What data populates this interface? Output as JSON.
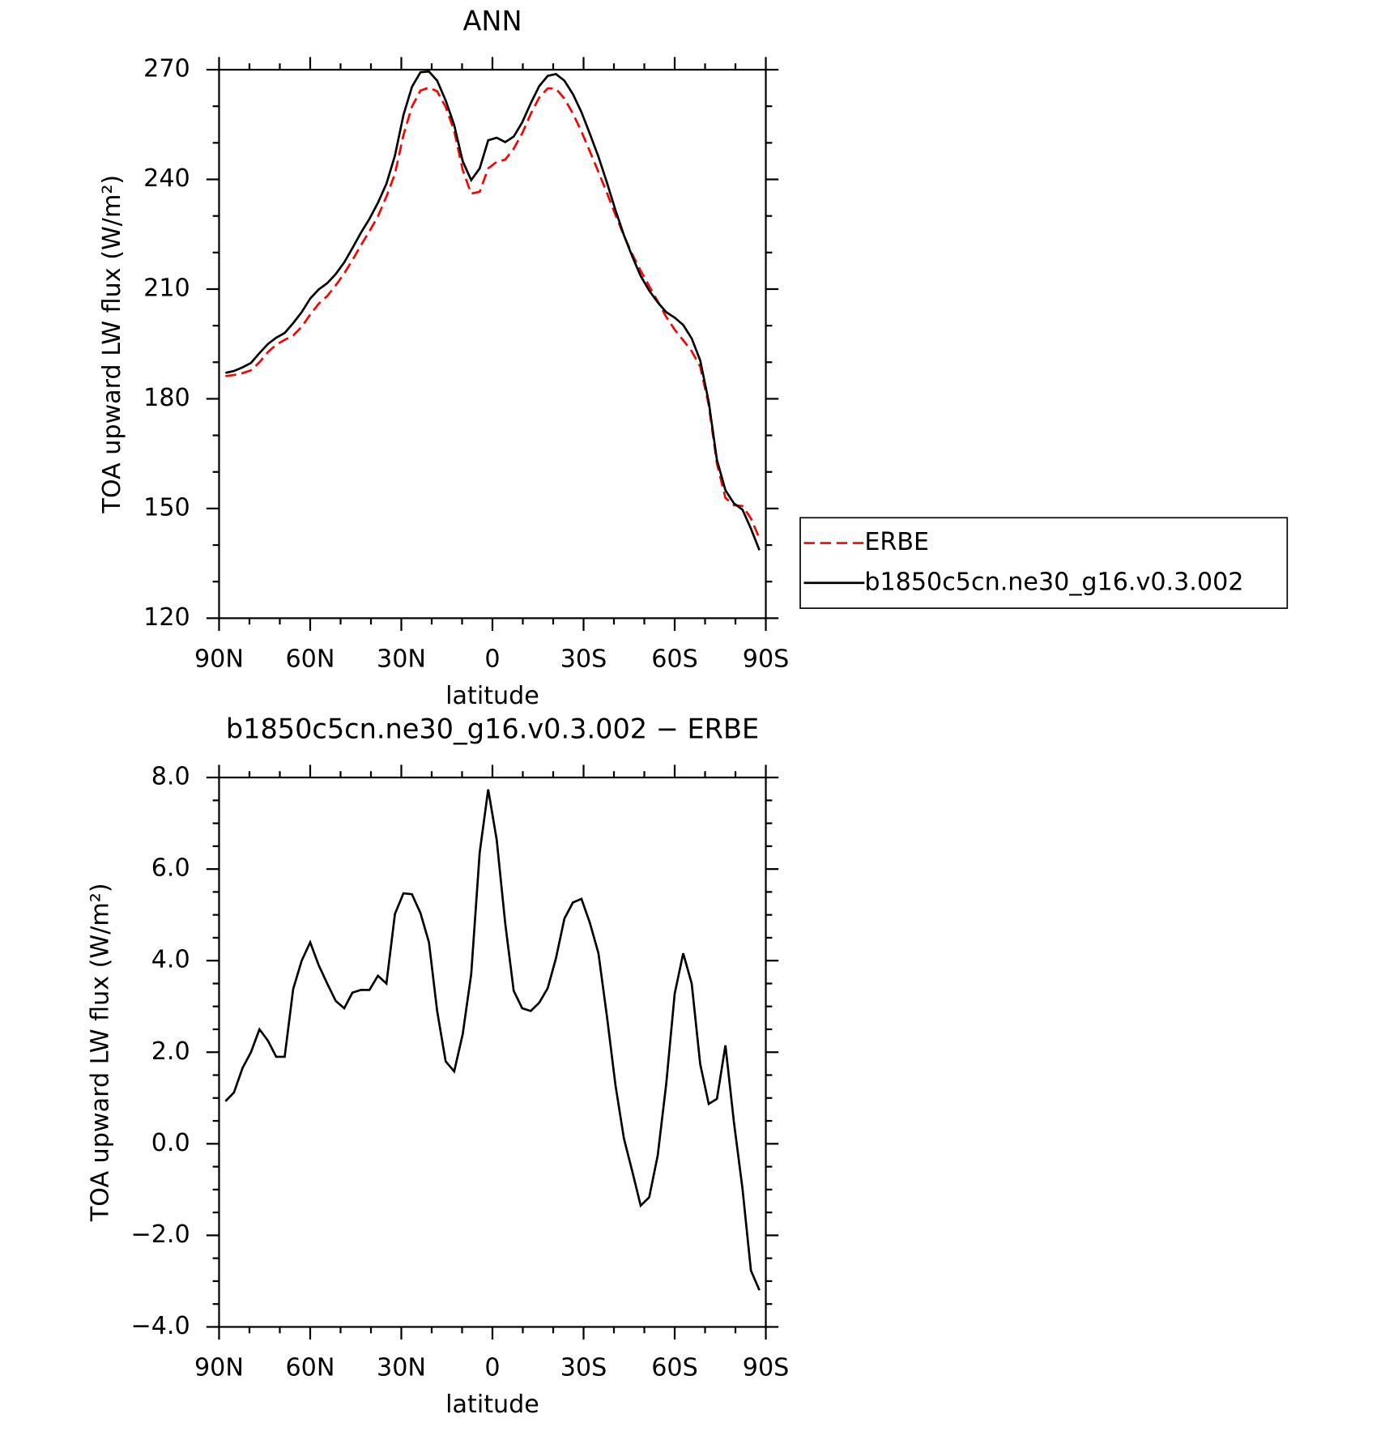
{
  "chart_data": [
    {
      "type": "line",
      "title": "ANN",
      "xlabel": "latitude",
      "ylabel": "TOA upward LW flux (W/m²)",
      "legend": "right",
      "x": [
        87.9,
        85.1,
        82.3,
        79.5,
        76.7,
        73.9,
        71.2,
        68.4,
        65.6,
        62.8,
        60.0,
        57.2,
        54.4,
        51.6,
        48.8,
        46.1,
        43.3,
        40.5,
        37.7,
        34.9,
        32.1,
        29.3,
        26.5,
        23.7,
        20.9,
        18.2,
        15.4,
        12.6,
        9.8,
        7.0,
        4.2,
        1.4,
        -1.4,
        -4.2,
        -7.0,
        -9.8,
        -12.6,
        -15.4,
        -18.2,
        -20.9,
        -23.7,
        -26.5,
        -29.3,
        -32.1,
        -34.9,
        -37.7,
        -40.5,
        -43.3,
        -46.1,
        -48.8,
        -51.6,
        -54.4,
        -57.2,
        -60.0,
        -62.8,
        -65.6,
        -68.4,
        -71.2,
        -73.9,
        -76.7,
        -79.5,
        -82.3,
        -85.1,
        -87.9
      ],
      "series": [
        {
          "name": "ERBE",
          "color": "#ff0000",
          "dash": true,
          "values": [
            186.2,
            186.5,
            187.0,
            187.8,
            190.0,
            192.8,
            194.8,
            196.1,
            197.3,
            199.7,
            203.0,
            206.0,
            208.1,
            211.0,
            214.3,
            217.9,
            222.0,
            225.8,
            229.9,
            235.3,
            241.5,
            252.1,
            259.9,
            264.3,
            265.1,
            264.1,
            259.8,
            253.3,
            242.6,
            236.1,
            236.6,
            243.0,
            244.8,
            245.4,
            248.4,
            252.6,
            257.9,
            262.4,
            264.9,
            264.8,
            262.1,
            258.0,
            253.1,
            247.6,
            242.0,
            236.3,
            230.3,
            224.6,
            219.4,
            215.0,
            210.8,
            206.7,
            202.4,
            198.9,
            196.0,
            193.0,
            188.8,
            178.3,
            162.3,
            152.9,
            150.9,
            150.7,
            147.3,
            141.8
          ]
        },
        {
          "name": "b1850c5cn.ne30_g16.v0.3.002",
          "color": "#000000",
          "dash": false,
          "values": [
            187.1,
            187.6,
            188.6,
            189.8,
            192.5,
            195.0,
            196.7,
            198.0,
            200.7,
            203.7,
            207.4,
            209.9,
            211.6,
            214.1,
            217.3,
            221.2,
            225.4,
            229.2,
            233.6,
            238.8,
            246.5,
            257.6,
            265.3,
            269.3,
            269.5,
            267.0,
            261.6,
            254.9,
            245.0,
            239.8,
            243.0,
            250.7,
            251.4,
            250.2,
            251.7,
            255.6,
            260.8,
            265.5,
            268.3,
            268.8,
            267.0,
            263.3,
            258.4,
            252.4,
            246.2,
            239.1,
            231.6,
            224.7,
            218.8,
            213.6,
            209.6,
            206.4,
            203.7,
            202.2,
            200.2,
            196.5,
            190.5,
            179.2,
            163.3,
            155.0,
            151.4,
            149.7,
            144.5,
            138.6
          ]
        }
      ],
      "xlim": [
        90,
        -90
      ],
      "xticks": [
        {
          "value": 90,
          "label": "90N"
        },
        {
          "value": 60,
          "label": "60N"
        },
        {
          "value": 30,
          "label": "30N"
        },
        0,
        {
          "value": -30,
          "label": "30S"
        },
        {
          "value": -60,
          "label": "60S"
        },
        {
          "value": -90,
          "label": "90S"
        }
      ],
      "xminorticks": [
        80,
        70,
        50,
        40,
        20,
        10,
        -10,
        -20,
        -40,
        -50,
        -70,
        -80
      ],
      "ylim": [
        120,
        270
      ],
      "yticks": [
        120,
        150,
        180,
        210,
        240,
        270
      ],
      "yminorticks": [
        130,
        140,
        160,
        170,
        190,
        200,
        220,
        230,
        250,
        260
      ]
    },
    {
      "type": "line",
      "title": "b1850c5cn.ne30_g16.v0.3.002 − ERBE",
      "xlabel": "latitude",
      "ylabel": "TOA upward LW flux (W/m²)",
      "x": [
        87.9,
        85.1,
        82.3,
        79.5,
        76.7,
        73.9,
        71.2,
        68.4,
        65.6,
        62.8,
        60.0,
        57.2,
        54.4,
        51.6,
        48.8,
        46.1,
        43.3,
        40.5,
        37.7,
        34.9,
        32.1,
        29.3,
        26.5,
        23.7,
        20.9,
        18.2,
        15.4,
        12.6,
        9.8,
        7.0,
        4.2,
        1.4,
        -1.4,
        -4.2,
        -7.0,
        -9.8,
        -12.6,
        -15.4,
        -18.2,
        -20.9,
        -23.7,
        -26.5,
        -29.3,
        -32.1,
        -34.9,
        -37.7,
        -40.5,
        -43.3,
        -46.1,
        -48.8,
        -51.6,
        -54.4,
        -57.2,
        -60.0,
        -62.8,
        -65.6,
        -68.4,
        -71.2,
        -73.9,
        -76.7,
        -79.5,
        -82.3,
        -85.1,
        -87.9
      ],
      "series": [
        {
          "color": "#000000",
          "dash": false,
          "values": [
            0.93,
            1.12,
            1.65,
            2.0,
            2.5,
            2.25,
            1.9,
            1.9,
            3.38,
            4.0,
            4.4,
            3.9,
            3.5,
            3.12,
            2.96,
            3.3,
            3.36,
            3.36,
            3.67,
            3.5,
            5.02,
            5.47,
            5.45,
            5.04,
            4.4,
            2.9,
            1.8,
            1.58,
            2.39,
            3.7,
            6.36,
            7.74,
            6.64,
            4.82,
            3.34,
            2.96,
            2.9,
            3.08,
            3.4,
            4.05,
            4.92,
            5.27,
            5.35,
            4.82,
            4.16,
            2.78,
            1.28,
            0.11,
            -0.62,
            -1.35,
            -1.17,
            -0.26,
            1.3,
            3.28,
            4.16,
            3.5,
            1.74,
            0.87,
            0.98,
            2.15,
            0.47,
            -0.97,
            -2.77,
            -3.2
          ]
        }
      ],
      "xlim": [
        90,
        -90
      ],
      "xticks": [
        {
          "value": 90,
          "label": "90N"
        },
        {
          "value": 60,
          "label": "60N"
        },
        {
          "value": 30,
          "label": "30N"
        },
        0,
        {
          "value": -30,
          "label": "30S"
        },
        {
          "value": -60,
          "label": "60S"
        },
        {
          "value": -90,
          "label": "90S"
        }
      ],
      "xminorticks": [
        80,
        70,
        50,
        40,
        20,
        10,
        -10,
        -20,
        -40,
        -50,
        -70,
        -80
      ],
      "ylim": [
        -4,
        8
      ],
      "yticks": [
        {
          "value": -4,
          "label": "−4.0"
        },
        {
          "value": -2,
          "label": "−2.0"
        },
        {
          "value": 0,
          "label": "0.0"
        },
        {
          "value": 2,
          "label": "2.0"
        },
        {
          "value": 4,
          "label": "4.0"
        },
        {
          "value": 6,
          "label": "6.0"
        },
        {
          "value": 8,
          "label": "8.0"
        }
      ],
      "yminorticks": [
        7.5,
        7,
        6.5,
        5.5,
        5,
        4.5,
        3.5,
        3,
        2.5,
        1.5,
        1,
        0.5,
        -0.5,
        -1,
        -1.5,
        -2.5,
        -3,
        -3.5
      ]
    }
  ]
}
